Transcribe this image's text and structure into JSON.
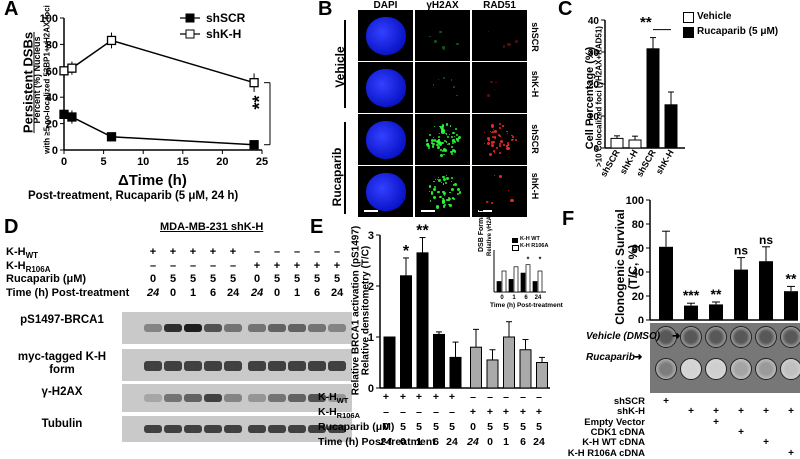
{
  "panels": {
    "A": "A",
    "B": "B",
    "C": "C",
    "D": "D",
    "E": "E",
    "F": "F"
  },
  "panel_a": {
    "ylabel_1": "Persistent DSBs",
    "ylabel_2": "Percent (%) Nucleus",
    "ylabel_3": "with ≥5 co-localized 53BP1+γH2AX foci",
    "xlabel": "ΔTime (h)",
    "caption": "Post-treatment, Rucaparib (5 μM, 24 h)",
    "significance": "**",
    "legend": [
      "shSCR",
      "shK-H"
    ]
  },
  "panel_b": {
    "columns": [
      "DAPI",
      "γH2AX",
      "RAD51"
    ],
    "groups": [
      "Vehicle",
      "Rucaparib"
    ],
    "row_labels": [
      "shSCR",
      "shK-H",
      "shSCR",
      "shK-H"
    ]
  },
  "panel_c": {
    "legend": [
      "Vehicle",
      "Rucaparib (5 μM)"
    ],
    "ylabel_1": "Cell Percentage (%)",
    "ylabel_2": ">10 Colocalized foci (γH2AX+RAD51)",
    "significance": "**"
  },
  "panel_d": {
    "title": "MDA-MB-231 shK-H",
    "row_headers": [
      "K-H",
      "K-H",
      "Rucaparib (μM)",
      "Time (h) Post-treatment"
    ],
    "subscripts": [
      "WT",
      "R106A"
    ],
    "row_values": [
      [
        "+",
        "+",
        "+",
        "+",
        "+",
        "–",
        "–",
        "–",
        "–",
        "–"
      ],
      [
        "–",
        "–",
        "–",
        "–",
        "–",
        "+",
        "+",
        "+",
        "+",
        "+"
      ],
      [
        "0",
        "5",
        "5",
        "5",
        "5",
        "0",
        "5",
        "5",
        "5",
        "5"
      ],
      [
        "24",
        "0",
        "1",
        "6",
        "24",
        "24",
        "0",
        "1",
        "6",
        "24"
      ]
    ],
    "blots": [
      "pS1497-BRCA1",
      "myc-tagged K-H form",
      "γ-H2AX",
      "Tubulin"
    ]
  },
  "panel_e": {
    "ylabel_1": "Relative BRCA1 activation (pS1497)",
    "ylabel_2": "Relative densitometry (T/C)",
    "inset_title": "DSB Formation",
    "inset_ylabel": "Relative γH2AX level",
    "inset_xlabel": "Time (h) Post-treatment",
    "inset_legend": [
      "K-H WT",
      "K-H R106A"
    ],
    "inset_sig": "*",
    "row_headers": [
      "K-H",
      "K-H",
      "Rucaparib (μM)",
      "Time (h) Post-treatment"
    ],
    "subscripts": [
      "WT",
      "R106A"
    ],
    "row_values": [
      [
        "+",
        "+",
        "+",
        "+",
        "+",
        "–",
        "–",
        "–",
        "–",
        "–"
      ],
      [
        "–",
        "–",
        "–",
        "–",
        "–",
        "+",
        "+",
        "+",
        "+",
        "+"
      ],
      [
        "0",
        "5",
        "5",
        "5",
        "5",
        "0",
        "5",
        "5",
        "5",
        "5"
      ],
      [
        "24",
        "0",
        "1",
        "6",
        "24",
        "24",
        "0",
        "1",
        "6",
        "24"
      ]
    ]
  },
  "panel_f": {
    "ylabel_1": "Clonogenic Survival",
    "ylabel_2": "(T/C, %)",
    "significance": [
      "",
      "***",
      "**",
      "ns",
      "ns",
      "**"
    ],
    "dish_labels": [
      "Vehicle (DMSO)",
      "Rucaparib"
    ],
    "row_headers": [
      "shSCR",
      "shK-H",
      "Empty Vector",
      "CDK1 cDNA",
      "K-H WT cDNA",
      "K-H R106A cDNA"
    ],
    "row_values": [
      [
        "+",
        "",
        "",
        "",
        "",
        ""
      ],
      [
        "",
        "+",
        "+",
        "+",
        "+",
        "+"
      ],
      [
        "",
        "",
        "+",
        "",
        "",
        ""
      ],
      [
        "",
        "",
        "",
        "+",
        "",
        ""
      ],
      [
        "",
        "",
        "",
        "",
        "+",
        ""
      ],
      [
        "",
        "",
        "",
        "",
        "",
        "+"
      ]
    ]
  },
  "chart_data": [
    {
      "type": "line",
      "panel": "A",
      "x": [
        0,
        1,
        6,
        24
      ],
      "series": [
        {
          "name": "shSCR",
          "values": [
            27,
            25,
            10,
            4
          ]
        },
        {
          "name": "shK-H",
          "values": [
            60,
            62,
            83,
            51
          ]
        }
      ],
      "xlabel": "ΔTime (h)",
      "xticks": [
        0,
        5,
        10,
        15,
        20,
        25
      ],
      "yticks": [
        0,
        20,
        40,
        60,
        80,
        100
      ],
      "xlim": [
        0,
        25
      ],
      "ylim": [
        0,
        100
      ]
    },
    {
      "type": "bar",
      "panel": "C",
      "categories": [
        "shSCR",
        "shK-H",
        "shSCR",
        "shK-H"
      ],
      "series": [
        {
          "name": "Vehicle",
          "values": [
            3,
            2.5,
            null,
            null
          ]
        },
        {
          "name": "Rucaparib (5 μM)",
          "values": [
            null,
            null,
            31,
            13.5
          ]
        }
      ],
      "yticks": [
        0,
        10,
        20,
        30,
        40
      ],
      "ylim": [
        0,
        40
      ]
    },
    {
      "type": "bar",
      "panel": "E",
      "values": [
        1.0,
        2.2,
        2.65,
        1.05,
        0.6,
        0.8,
        0.55,
        1.0,
        0.75,
        0.5
      ],
      "labels": [
        "",
        "*",
        "**",
        "",
        "",
        "",
        "",
        "",
        "",
        ""
      ],
      "yticks": [
        0,
        1,
        2,
        3
      ],
      "ylim": [
        0,
        3
      ]
    },
    {
      "type": "bar",
      "panel": "E-inset",
      "categories": [
        "0",
        "1",
        "6",
        "24"
      ],
      "series": [
        {
          "name": "K-H WT",
          "values": [
            0.5,
            0.6,
            0.9,
            0.5
          ]
        },
        {
          "name": "K-H R106A",
          "values": [
            1.0,
            1.2,
            1.3,
            1.0
          ]
        }
      ],
      "ylim": [
        0,
        2
      ]
    },
    {
      "type": "bar",
      "panel": "F",
      "values": [
        61,
        12,
        13,
        42,
        49,
        24
      ],
      "labels": [
        "",
        "***",
        "**",
        "ns",
        "ns",
        "**"
      ],
      "yticks": [
        0,
        20,
        40,
        60,
        80,
        100
      ],
      "ylim": [
        0,
        100
      ]
    }
  ]
}
